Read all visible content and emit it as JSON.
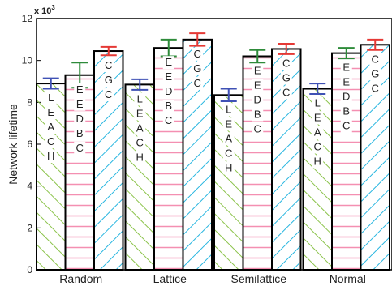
{
  "chart_data": {
    "type": "bar",
    "ylabel": "Network lifetime",
    "xlabel": "",
    "y_multiplier_label": "x 10^3",
    "ylim": [
      0,
      12
    ],
    "yticks": [
      0,
      2,
      4,
      6,
      8,
      10,
      12
    ],
    "categories": [
      "Random",
      "Lattice",
      "Semilattice",
      "Normal"
    ],
    "grid": false,
    "series": [
      {
        "name": "LEACH",
        "values": [
          8.9,
          8.85,
          8.35,
          8.65
        ],
        "errors": [
          0.25,
          0.25,
          0.3,
          0.25
        ],
        "color": "#8bc34a",
        "error_color": "#3f51b5"
      },
      {
        "name": "EEDBC",
        "values": [
          9.3,
          10.6,
          10.2,
          10.35
        ],
        "errors": [
          0.6,
          0.4,
          0.3,
          0.25
        ],
        "color": "#f48fb1",
        "error_color": "#2e8b3a"
      },
      {
        "name": "CGC",
        "values": [
          10.45,
          11.0,
          10.55,
          10.75
        ],
        "errors": [
          0.2,
          0.3,
          0.25,
          0.25
        ],
        "color": "#29b6e0",
        "error_color": "#e53935"
      }
    ]
  }
}
